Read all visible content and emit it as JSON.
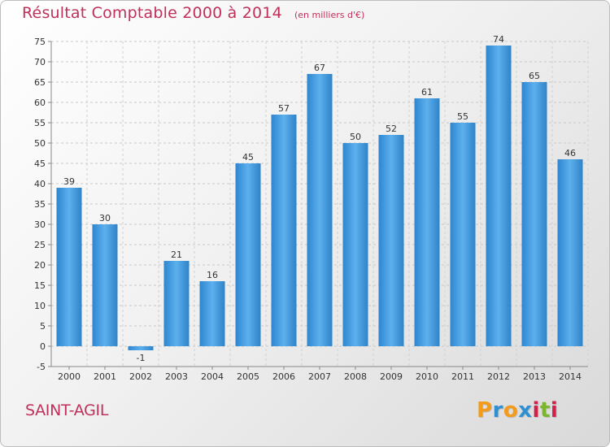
{
  "header": {
    "title": "Résultat Comptable 2000 à 2014",
    "unit": "(en milliers d'€)"
  },
  "footer": {
    "commune": "SAINT-AGIL",
    "brand_letters": [
      "P",
      "r",
      "o",
      "x",
      "i",
      "t",
      "i"
    ],
    "brand_colors": [
      "#f29b1d",
      "#2f8fd0",
      "#f29b1d",
      "#2f8fd0",
      "#d0214b",
      "#7ab72b",
      "#d0214b"
    ]
  },
  "chart_data": {
    "type": "bar",
    "categories": [
      "2000",
      "2001",
      "2002",
      "2003",
      "2004",
      "2005",
      "2006",
      "2007",
      "2008",
      "2009",
      "2010",
      "2011",
      "2012",
      "2013",
      "2014"
    ],
    "values": [
      39,
      30,
      -1,
      21,
      16,
      45,
      57,
      67,
      50,
      52,
      61,
      55,
      74,
      65,
      46
    ],
    "data_labels": [
      "39",
      "30",
      "-1",
      "21",
      "16",
      "45",
      "57",
      "67",
      "50",
      "52",
      "61",
      "55",
      "74",
      "65",
      "46"
    ],
    "title": "Résultat Comptable 2000 à 2014",
    "ylim": [
      -5,
      75
    ],
    "yticks": [
      -5,
      0,
      5,
      10,
      15,
      20,
      25,
      30,
      35,
      40,
      45,
      50,
      55,
      60,
      65,
      70,
      75
    ],
    "grid": true,
    "bar_color": "#4a9fe0",
    "text_color": "#333333"
  }
}
